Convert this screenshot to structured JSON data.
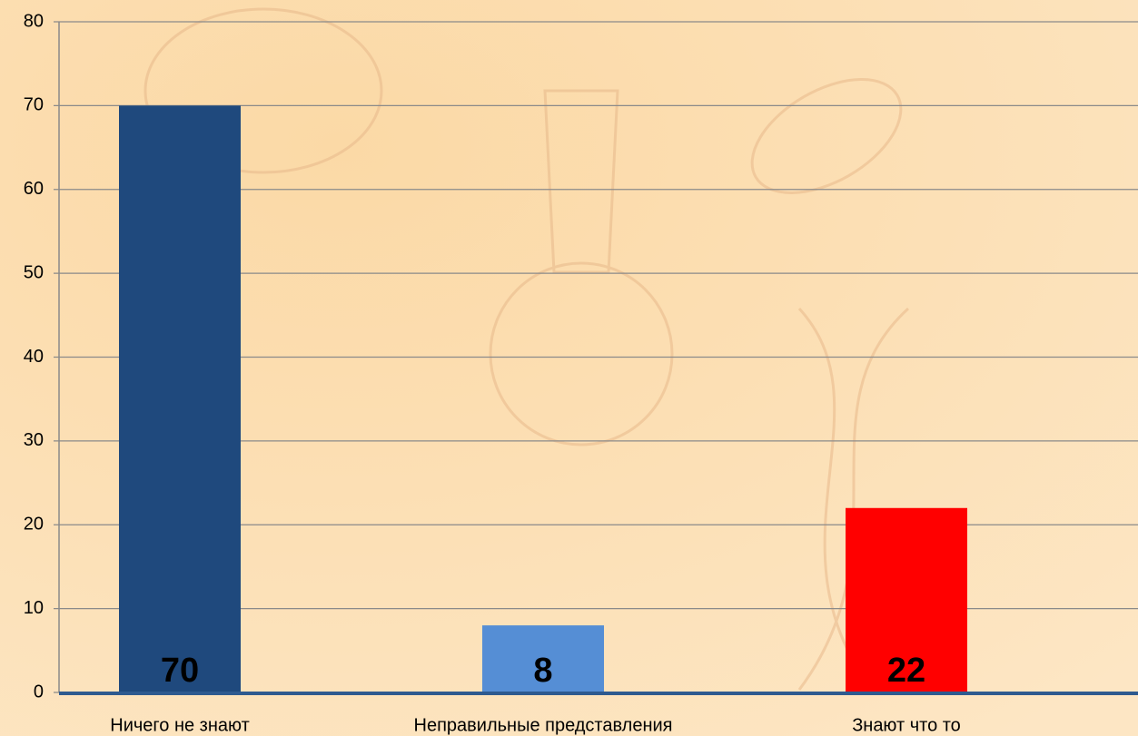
{
  "chart_data": {
    "type": "bar",
    "categories": [
      "Ничего не знают",
      "Неправильные представления",
      "Знают что то"
    ],
    "values": [
      70,
      8,
      22
    ],
    "colors": [
      "#1f497d",
      "#558ed5",
      "#ff0000"
    ],
    "ylim": [
      0,
      80
    ],
    "yticks": [
      0,
      10,
      20,
      30,
      40,
      50,
      60,
      70,
      80
    ],
    "grid": true
  }
}
